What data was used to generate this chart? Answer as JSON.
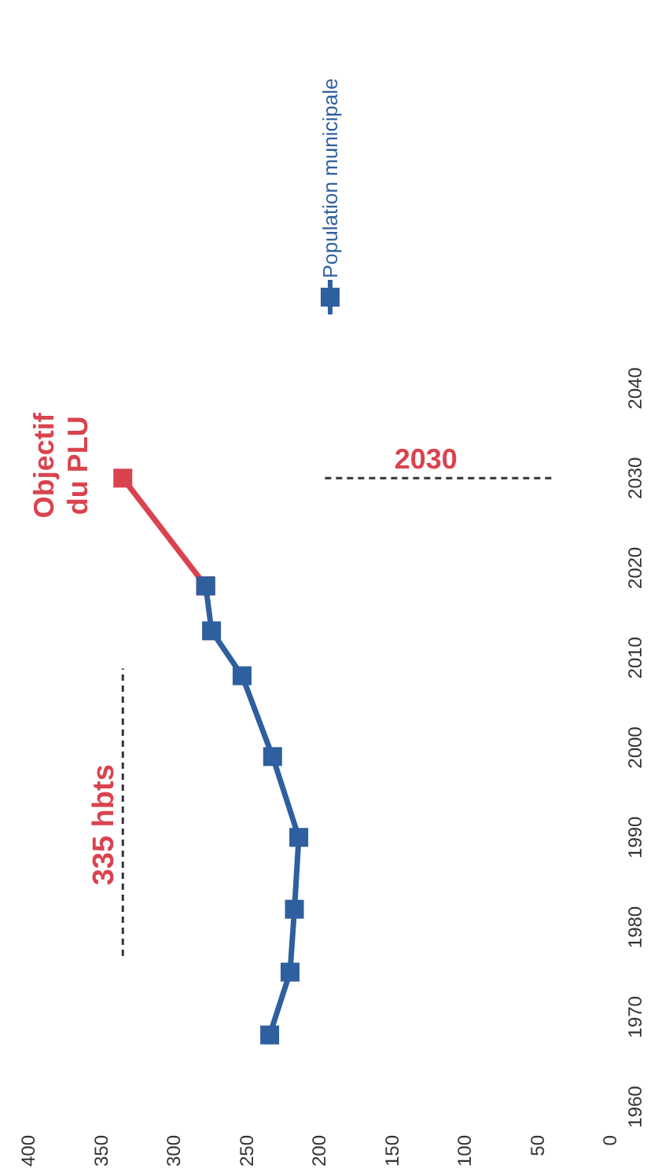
{
  "chart_data": {
    "type": "line",
    "legend": "top",
    "marker": "square",
    "line_style": "solid",
    "grid": false,
    "xlim": [
      400,
      0
    ],
    "xticks": [
      400,
      350,
      300,
      250,
      200,
      150,
      100,
      50,
      0
    ],
    "ylim": [
      1960,
      2040
    ],
    "yticks": [
      1960,
      1970,
      1980,
      1990,
      2000,
      2010,
      2020,
      2030,
      2040
    ],
    "series": [
      {
        "color": "#d9434e",
        "x": [
          278,
          335
        ],
        "values": [
          2018,
          2030
        ]
      },
      {
        "name": "Population municipale",
        "color": "#2e5f9e",
        "x": [
          234,
          220,
          217,
          214,
          232,
          253,
          274,
          278
        ],
        "values": [
          1968,
          1975,
          1982,
          1990,
          1999,
          2008,
          2013,
          2018
        ]
      }
    ],
    "ref_lines": [
      {
        "axis": "x",
        "value": 335,
        "label": "335 hbts",
        "color": "#333333",
        "line_style": "dashed"
      },
      {
        "axis": "y",
        "value": 2030,
        "label": "2030",
        "color": "#333333",
        "line_style": "dashed"
      }
    ],
    "annotations": [
      {
        "text": "Objectif du PLU",
        "x": 335,
        "y": 2030
      }
    ]
  }
}
